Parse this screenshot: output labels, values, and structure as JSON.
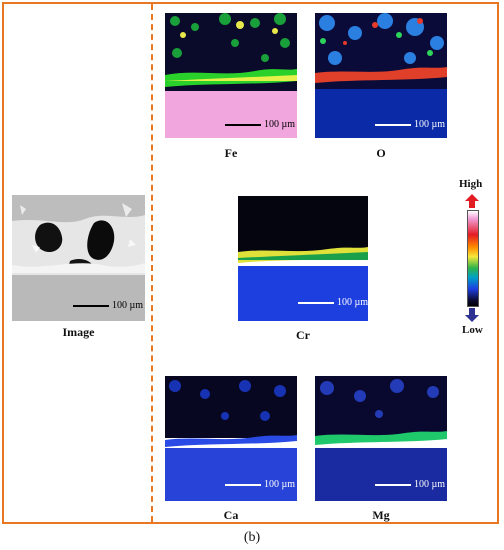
{
  "figure": {
    "caption": "(b)",
    "panels": [
      {
        "key": "image",
        "label": "Image",
        "scale": "100 µm"
      },
      {
        "key": "fe",
        "label": "Fe",
        "scale": "100 µm"
      },
      {
        "key": "o",
        "label": "O",
        "scale": "100 µm"
      },
      {
        "key": "cr",
        "label": "Cr",
        "scale": "100 µm"
      },
      {
        "key": "ca",
        "label": "Ca",
        "scale": "100 µm"
      },
      {
        "key": "mg",
        "label": "Mg",
        "scale": "100 µm"
      }
    ],
    "legend": {
      "high": "High",
      "low": "Low"
    },
    "colors": {
      "accent": "#e87722",
      "arrow_high": "#e31b23",
      "arrow_low": "#2e3192"
    }
  }
}
